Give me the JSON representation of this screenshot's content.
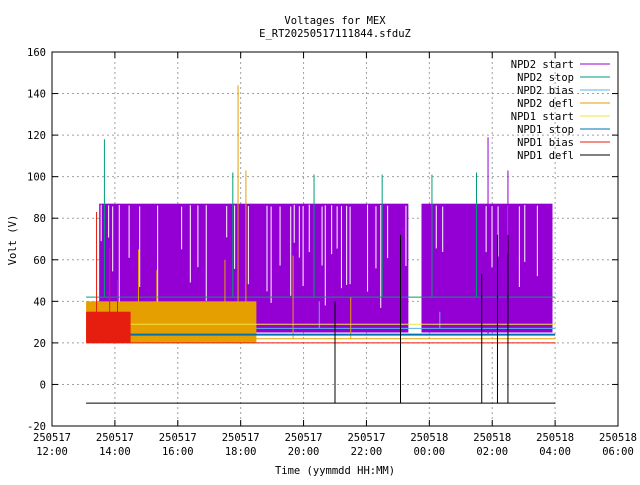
{
  "chart_data": {
    "type": "line",
    "title": "Voltages for MEX",
    "subtitle": "E_RT20250517111844.sfduZ",
    "xlabel": "Time (yymmdd HH:MM)",
    "ylabel": "Volt (V)",
    "xlim": [
      "2025-05-17 12:00",
      "2025-05-18 06:00"
    ],
    "ylim": [
      -20,
      160
    ],
    "grid": true,
    "legend_position": "top-right",
    "x_ticks": [
      {
        "t": "2025-05-17 12:00",
        "date": "250517",
        "time": "12:00"
      },
      {
        "t": "2025-05-17 14:00",
        "date": "250517",
        "time": "14:00"
      },
      {
        "t": "2025-05-17 16:00",
        "date": "250517",
        "time": "16:00"
      },
      {
        "t": "2025-05-17 18:00",
        "date": "250517",
        "time": "18:00"
      },
      {
        "t": "2025-05-17 20:00",
        "date": "250517",
        "time": "20:00"
      },
      {
        "t": "2025-05-17 22:00",
        "date": "250517",
        "time": "22:00"
      },
      {
        "t": "2025-05-18 00:00",
        "date": "250518",
        "time": "00:00"
      },
      {
        "t": "2025-05-18 02:00",
        "date": "250518",
        "time": "02:00"
      },
      {
        "t": "2025-05-18 04:00",
        "date": "250518",
        "time": "04:00"
      },
      {
        "t": "2025-05-18 06:00",
        "date": "250518",
        "time": "06:00"
      }
    ],
    "y_ticks": [
      -20,
      0,
      20,
      40,
      60,
      80,
      100,
      120,
      140,
      160
    ],
    "series": [
      {
        "name": "NPD2 start",
        "color": "#9400d3",
        "baseline": 24,
        "segments": [
          {
            "start": "2025-05-17 13:08",
            "end": "2025-05-17 13:30",
            "low": 25,
            "high": 36
          },
          {
            "start": "2025-05-17 13:30",
            "end": "2025-05-17 23:20",
            "low": 25,
            "high": 87
          },
          {
            "start": "2025-05-17 23:45",
            "end": "2025-05-18 03:55",
            "low": 25,
            "high": 87
          }
        ],
        "spikes": [
          {
            "t": "2025-05-18 01:52",
            "value": 119
          },
          {
            "t": "2025-05-18 02:30",
            "value": 103
          }
        ]
      },
      {
        "name": "NPD2 stop",
        "color": "#009e73",
        "baseline": 42,
        "spikes": [
          {
            "t": "2025-05-17 13:40",
            "value": 118
          },
          {
            "t": "2025-05-17 17:45",
            "value": 102
          },
          {
            "t": "2025-05-17 20:20",
            "value": 101
          },
          {
            "t": "2025-05-17 22:30",
            "value": 101
          },
          {
            "t": "2025-05-18 00:05",
            "value": 101
          },
          {
            "t": "2025-05-18 01:30",
            "value": 102
          }
        ]
      },
      {
        "name": "NPD2 bias",
        "color": "#56b4e9",
        "baseline": 27,
        "spikes": [
          {
            "t": "2025-05-17 20:30",
            "value": 40
          },
          {
            "t": "2025-05-18 00:20",
            "value": 35
          }
        ]
      },
      {
        "name": "NPD2 defl",
        "color": "#e69f00",
        "baseline": 22,
        "segments": [
          {
            "start": "2025-05-17 13:05",
            "end": "2025-05-17 18:30",
            "low": 20,
            "high": 40
          }
        ],
        "spikes": [
          {
            "t": "2025-05-17 14:45",
            "value": 65
          },
          {
            "t": "2025-05-17 15:20",
            "value": 55
          },
          {
            "t": "2025-05-17 17:30",
            "value": 60
          },
          {
            "t": "2025-05-17 17:55",
            "value": 144
          },
          {
            "t": "2025-05-17 18:10",
            "value": 103
          },
          {
            "t": "2025-05-17 19:40",
            "value": 62
          },
          {
            "t": "2025-05-17 21:30",
            "value": 42
          }
        ]
      },
      {
        "name": "NPD1 start",
        "color": "#f0e442",
        "baseline": 29,
        "segments": []
      },
      {
        "name": "NPD1 stop",
        "color": "#0072b2",
        "baseline": 24,
        "segments": []
      },
      {
        "name": "NPD1 bias",
        "color": "#e51e10",
        "baseline": 20,
        "segments": [
          {
            "start": "2025-05-17 13:05",
            "end": "2025-05-17 14:30",
            "low": 20,
            "high": 35
          }
        ],
        "spikes": [
          {
            "t": "2025-05-17 13:25",
            "value": 83
          },
          {
            "t": "2025-05-17 13:50",
            "value": 66
          },
          {
            "t": "2025-05-17 14:05",
            "value": 50
          }
        ]
      },
      {
        "name": "NPD1 defl",
        "color": "#000000",
        "baseline": -9,
        "spikes": [
          {
            "t": "2025-05-17 21:00",
            "value": 40
          },
          {
            "t": "2025-05-17 23:05",
            "value": 72
          },
          {
            "t": "2025-05-18 01:40",
            "value": 53
          },
          {
            "t": "2025-05-18 02:10",
            "value": 72
          },
          {
            "t": "2025-05-18 02:30",
            "value": 72
          }
        ]
      }
    ]
  }
}
